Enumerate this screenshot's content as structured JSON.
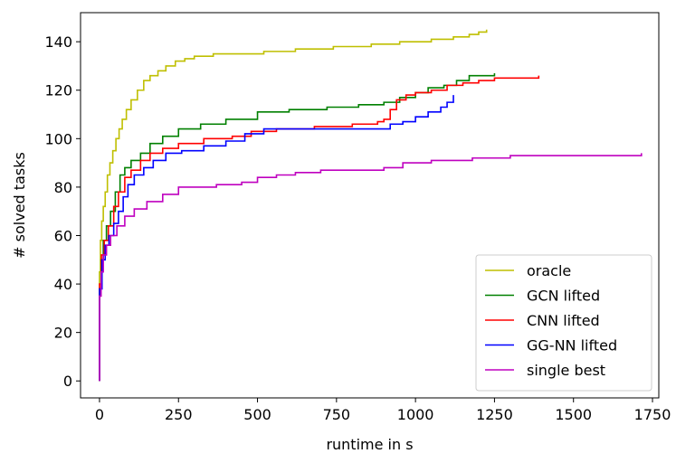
{
  "chart_data": {
    "type": "line",
    "title": "",
    "xlabel": "runtime in s",
    "ylabel": "# solved tasks",
    "xlim": [
      -60,
      1770
    ],
    "ylim": [
      -7,
      152
    ],
    "xticks": [
      0,
      250,
      500,
      750,
      1000,
      1250,
      1500,
      1750
    ],
    "yticks": [
      0,
      20,
      40,
      60,
      80,
      100,
      120,
      140
    ],
    "grid": false,
    "legend_position": "lower right",
    "series": [
      {
        "name": "oracle",
        "color": "#bfbf00",
        "points": [
          [
            0,
            0
          ],
          [
            0,
            45
          ],
          [
            3,
            58
          ],
          [
            7,
            66
          ],
          [
            12,
            72
          ],
          [
            18,
            78
          ],
          [
            25,
            85
          ],
          [
            33,
            90
          ],
          [
            42,
            95
          ],
          [
            52,
            100
          ],
          [
            62,
            104
          ],
          [
            72,
            108
          ],
          [
            85,
            112
          ],
          [
            100,
            116
          ],
          [
            120,
            120
          ],
          [
            140,
            124
          ],
          [
            160,
            126
          ],
          [
            185,
            128
          ],
          [
            210,
            130
          ],
          [
            240,
            132
          ],
          [
            270,
            133
          ],
          [
            300,
            134
          ],
          [
            360,
            135
          ],
          [
            450,
            135
          ],
          [
            520,
            136
          ],
          [
            620,
            137
          ],
          [
            740,
            138
          ],
          [
            860,
            139
          ],
          [
            950,
            140
          ],
          [
            1050,
            141
          ],
          [
            1120,
            142
          ],
          [
            1170,
            143
          ],
          [
            1200,
            144
          ],
          [
            1225,
            145
          ]
        ]
      },
      {
        "name": "GCN lifted",
        "color": "#008000",
        "points": [
          [
            0,
            0
          ],
          [
            0,
            38
          ],
          [
            5,
            50
          ],
          [
            12,
            58
          ],
          [
            22,
            64
          ],
          [
            35,
            70
          ],
          [
            50,
            78
          ],
          [
            65,
            85
          ],
          [
            80,
            88
          ],
          [
            100,
            91
          ],
          [
            130,
            94
          ],
          [
            160,
            98
          ],
          [
            200,
            101
          ],
          [
            250,
            104
          ],
          [
            320,
            106
          ],
          [
            400,
            108
          ],
          [
            500,
            111
          ],
          [
            600,
            112
          ],
          [
            720,
            113
          ],
          [
            820,
            114
          ],
          [
            900,
            115
          ],
          [
            950,
            117
          ],
          [
            1000,
            119
          ],
          [
            1040,
            121
          ],
          [
            1090,
            122
          ],
          [
            1130,
            124
          ],
          [
            1170,
            126
          ],
          [
            1250,
            127
          ]
        ]
      },
      {
        "name": "CNN lifted",
        "color": "#ff0000",
        "points": [
          [
            0,
            0
          ],
          [
            0,
            40
          ],
          [
            6,
            52
          ],
          [
            15,
            58
          ],
          [
            28,
            64
          ],
          [
            45,
            72
          ],
          [
            60,
            78
          ],
          [
            80,
            84
          ],
          [
            100,
            87
          ],
          [
            130,
            91
          ],
          [
            160,
            94
          ],
          [
            200,
            96
          ],
          [
            250,
            98
          ],
          [
            330,
            100
          ],
          [
            420,
            101
          ],
          [
            480,
            103
          ],
          [
            560,
            104
          ],
          [
            680,
            105
          ],
          [
            800,
            106
          ],
          [
            880,
            107
          ],
          [
            900,
            108
          ],
          [
            920,
            112
          ],
          [
            940,
            116
          ],
          [
            970,
            118
          ],
          [
            1000,
            119
          ],
          [
            1050,
            120
          ],
          [
            1100,
            122
          ],
          [
            1150,
            123
          ],
          [
            1200,
            124
          ],
          [
            1250,
            125
          ],
          [
            1390,
            126
          ]
        ]
      },
      {
        "name": "GG-NN lifted",
        "color": "#0000ff",
        "points": [
          [
            0,
            0
          ],
          [
            0,
            38
          ],
          [
            8,
            50
          ],
          [
            18,
            56
          ],
          [
            30,
            60
          ],
          [
            45,
            65
          ],
          [
            60,
            70
          ],
          [
            75,
            76
          ],
          [
            90,
            81
          ],
          [
            110,
            85
          ],
          [
            140,
            88
          ],
          [
            170,
            91
          ],
          [
            210,
            94
          ],
          [
            260,
            95
          ],
          [
            330,
            97
          ],
          [
            400,
            99
          ],
          [
            460,
            102
          ],
          [
            520,
            104
          ],
          [
            620,
            104
          ],
          [
            750,
            104
          ],
          [
            880,
            104
          ],
          [
            920,
            106
          ],
          [
            960,
            107
          ],
          [
            1000,
            109
          ],
          [
            1040,
            111
          ],
          [
            1080,
            113
          ],
          [
            1100,
            115
          ],
          [
            1120,
            118
          ]
        ]
      },
      {
        "name": "single best",
        "color": "#bf00bf",
        "points": [
          [
            0,
            0
          ],
          [
            0,
            35
          ],
          [
            5,
            45
          ],
          [
            12,
            52
          ],
          [
            22,
            56
          ],
          [
            35,
            60
          ],
          [
            55,
            64
          ],
          [
            80,
            68
          ],
          [
            110,
            71
          ],
          [
            150,
            74
          ],
          [
            200,
            77
          ],
          [
            250,
            80
          ],
          [
            330,
            80
          ],
          [
            370,
            81
          ],
          [
            450,
            82
          ],
          [
            500,
            84
          ],
          [
            560,
            85
          ],
          [
            620,
            86
          ],
          [
            700,
            87
          ],
          [
            800,
            87
          ],
          [
            900,
            88
          ],
          [
            960,
            90
          ],
          [
            1050,
            91
          ],
          [
            1180,
            92
          ],
          [
            1300,
            93
          ],
          [
            1500,
            93
          ],
          [
            1715,
            94
          ]
        ]
      }
    ]
  }
}
